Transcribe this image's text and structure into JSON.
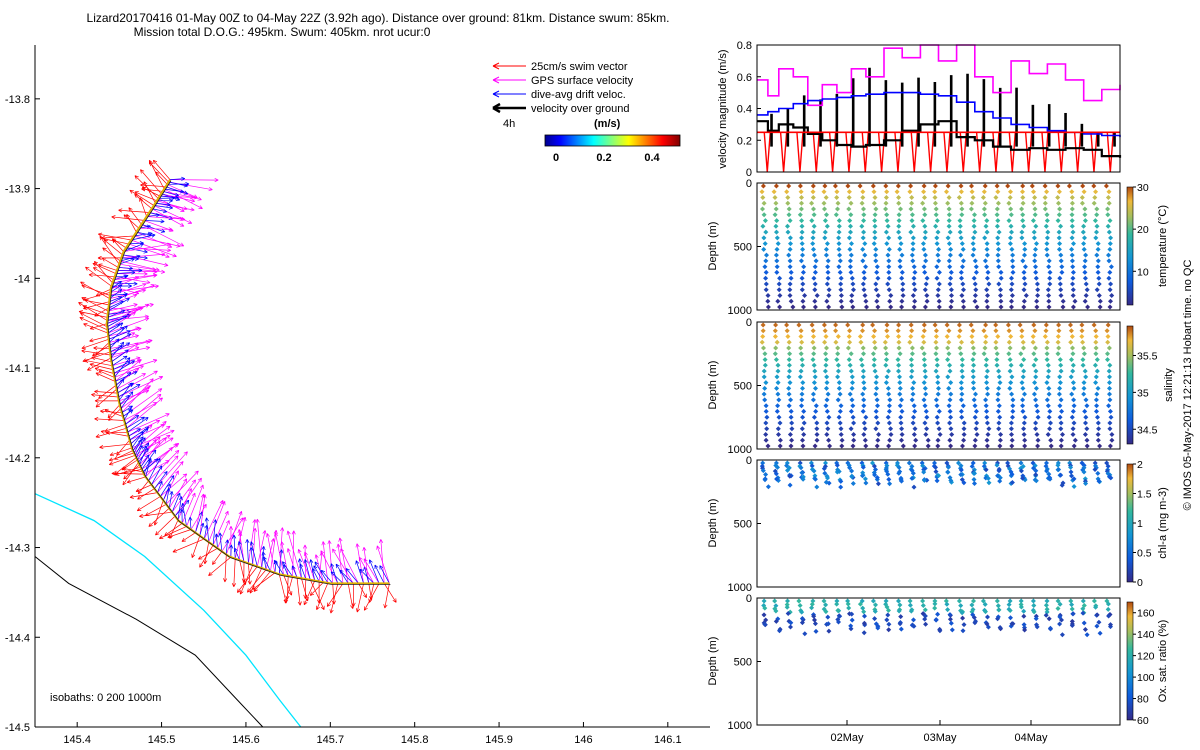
{
  "title": {
    "line1": "Lizard20170416 01-May 00Z to 04-May 22Z (3.92h ago). Distance over ground: 81km. Distance swum: 85km.",
    "line2": "Mission total D.O.G.: 495km. Swum: 405km. nrot ucur:0"
  },
  "legend": {
    "items": [
      {
        "label": "25cm/s swim vector",
        "color": "#ff0000"
      },
      {
        "label": "GPS surface velocity",
        "color": "#ff00ff"
      },
      {
        "label": "dive-avg drift veloc.",
        "color": "#0000ff"
      },
      {
        "label": "velocity over ground",
        "color": "#000000"
      }
    ],
    "interval": "4h",
    "colorbar_label": "(m/s)",
    "colorbar_ticks": [
      "0",
      "0.2",
      "0.4"
    ]
  },
  "footer": {
    "isobaths": "isobaths: 0   200  1000m",
    "credit": "© IMOS 05-May-2017 12:21:13 Hobart time. no QC"
  },
  "chart_data": [
    {
      "type": "scatter",
      "name": "map",
      "xlim": [
        145.35,
        146.15
      ],
      "ylim": [
        -14.5,
        -13.74
      ],
      "x_ticks": [
        "145.4",
        "145.5",
        "145.6",
        "145.7",
        "145.8",
        "145.9",
        "146",
        "146.1"
      ],
      "y_ticks": [
        "-13.8",
        "-13.9",
        "-14",
        "-14.1",
        "-14.2",
        "-14.3",
        "-14.4",
        "-14.5"
      ],
      "track": [
        [
          145.51,
          -13.89
        ],
        [
          145.49,
          -13.92
        ],
        [
          145.455,
          -13.97
        ],
        [
          145.44,
          -14.01
        ],
        [
          145.435,
          -14.05
        ],
        [
          145.44,
          -14.09
        ],
        [
          145.45,
          -14.14
        ],
        [
          145.465,
          -14.19
        ],
        [
          145.48,
          -14.22
        ],
        [
          145.52,
          -14.27
        ],
        [
          145.58,
          -14.31
        ],
        [
          145.64,
          -14.33
        ],
        [
          145.7,
          -14.34
        ],
        [
          145.77,
          -14.34
        ]
      ],
      "isobath_0": [
        [
          145.35,
          -14.31
        ],
        [
          145.39,
          -14.34
        ],
        [
          145.47,
          -14.38
        ],
        [
          145.54,
          -14.42
        ],
        [
          145.59,
          -14.47
        ],
        [
          145.62,
          -14.5
        ]
      ],
      "isobath_200": [
        [
          145.35,
          -14.24
        ],
        [
          145.42,
          -14.27
        ],
        [
          145.48,
          -14.31
        ],
        [
          145.55,
          -14.37
        ],
        [
          145.6,
          -14.42
        ],
        [
          145.64,
          -14.47
        ],
        [
          145.665,
          -14.5
        ]
      ]
    },
    {
      "type": "line",
      "name": "velocity",
      "ylabel": "velocity magnitude (m/s)",
      "ylim": [
        0,
        0.8
      ],
      "y_ticks": [
        "0",
        "0.2",
        "0.4",
        "0.6",
        "0.8"
      ],
      "x": [
        0,
        0.03,
        0.06,
        0.1,
        0.14,
        0.18,
        0.22,
        0.26,
        0.3,
        0.35,
        0.4,
        0.45,
        0.5,
        0.55,
        0.6,
        0.65,
        0.7,
        0.75,
        0.8,
        0.85,
        0.9,
        0.95,
        1.0
      ],
      "series": [
        {
          "name": "GPS surface velocity",
          "color": "#ff00ff",
          "values": [
            0.58,
            0.48,
            0.65,
            0.6,
            0.42,
            0.55,
            0.5,
            0.65,
            0.6,
            0.78,
            0.72,
            0.82,
            0.7,
            0.8,
            0.6,
            0.5,
            0.7,
            0.62,
            0.68,
            0.58,
            0.45,
            0.52,
            0.55
          ]
        },
        {
          "name": "dive-avg drift veloc.",
          "color": "#0000ff",
          "values": [
            0.36,
            0.38,
            0.4,
            0.43,
            0.45,
            0.46,
            0.47,
            0.48,
            0.49,
            0.5,
            0.5,
            0.49,
            0.48,
            0.44,
            0.38,
            0.34,
            0.3,
            0.28,
            0.26,
            0.25,
            0.24,
            0.23,
            0.22
          ]
        },
        {
          "name": "velocity over ground",
          "color": "#000000",
          "values": [
            0.32,
            0.26,
            0.3,
            0.28,
            0.24,
            0.2,
            0.17,
            0.16,
            0.17,
            0.2,
            0.26,
            0.3,
            0.32,
            0.22,
            0.2,
            0.16,
            0.14,
            0.15,
            0.14,
            0.15,
            0.14,
            0.1,
            0.09
          ]
        },
        {
          "name": "25cm/s swim vector",
          "color": "#ff0000",
          "values": [
            0.25,
            0.25,
            0.25,
            0.25,
            0.25,
            0.25,
            0.25,
            0.25,
            0.25,
            0.25,
            0.25,
            0.25,
            0.25,
            0.25,
            0.25,
            0.25,
            0.25,
            0.25,
            0.25,
            0.25,
            0.25,
            0.25,
            0.25
          ]
        }
      ]
    },
    {
      "type": "scatter",
      "name": "temperature",
      "ylabel": "Depth (m)",
      "ylim": [
        1000,
        0
      ],
      "y_ticks": [
        "0",
        "500",
        "1000"
      ],
      "cbar_label": "temperature (°C)",
      "cbar_ticks": [
        "10",
        "20",
        "30"
      ],
      "cbar_range": [
        2,
        30
      ],
      "max_depth": 1000
    },
    {
      "type": "scatter",
      "name": "salinity",
      "ylabel": "Depth (m)",
      "ylim": [
        1000,
        0
      ],
      "y_ticks": [
        "0",
        "500",
        "1000"
      ],
      "cbar_label": "salinity",
      "cbar_ticks": [
        "34.5",
        "35",
        "35.5"
      ],
      "cbar_range": [
        34.3,
        35.9
      ],
      "max_depth": 1000
    },
    {
      "type": "scatter",
      "name": "chla",
      "ylabel": "Depth (m)",
      "ylim": [
        1000,
        0
      ],
      "y_ticks": [
        "0",
        "500",
        "1000"
      ],
      "cbar_label": "chl-a (mg m-3)",
      "cbar_ticks": [
        "0",
        "0.5",
        "1",
        "1.5",
        "2"
      ],
      "cbar_range": [
        0,
        2
      ],
      "max_depth": 200
    },
    {
      "type": "scatter",
      "name": "oxygen",
      "ylabel": "Depth (m)",
      "ylim": [
        1000,
        0
      ],
      "y_ticks": [
        "0",
        "500",
        "1000"
      ],
      "cbar_label": "Ox. sat. ratio (%)",
      "cbar_ticks": [
        "60",
        "80",
        "100",
        "120",
        "140",
        "160"
      ],
      "cbar_range": [
        60,
        170
      ],
      "max_depth": 280,
      "x_ticks": [
        "02May",
        "03May",
        "04May"
      ]
    }
  ]
}
